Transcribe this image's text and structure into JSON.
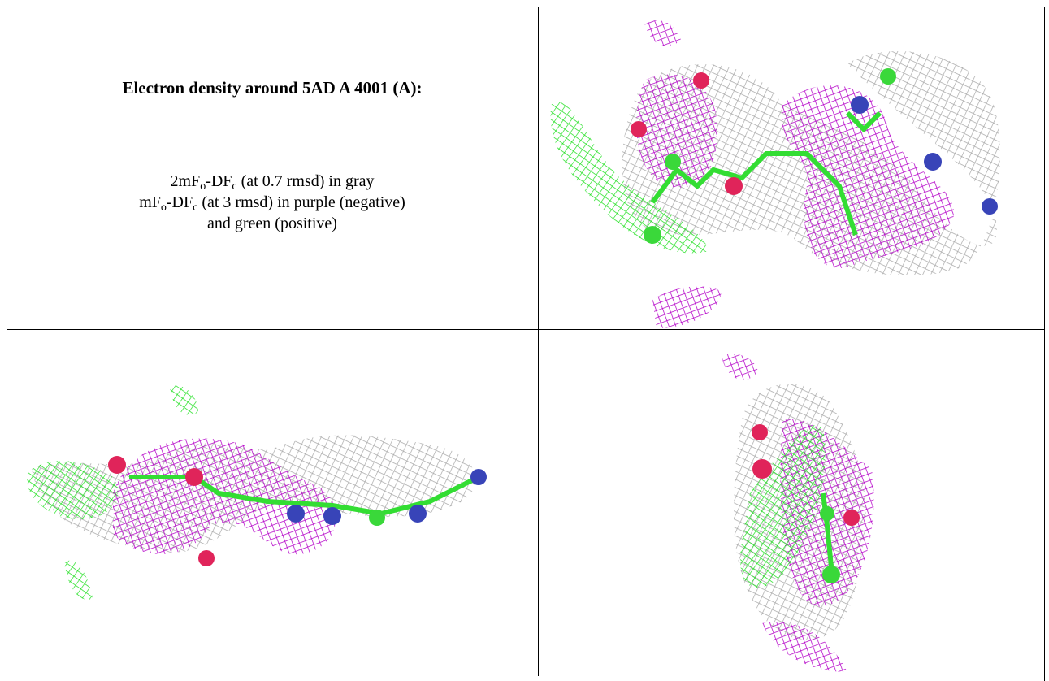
{
  "header": {
    "title": "Electron density around 5AD A 4001 (A):"
  },
  "legend": [
    [
      "2mF",
      "o",
      "-DF",
      "c",
      " (at 0.7 rmsd) in gray"
    ],
    [
      "mF",
      "o",
      "-DF",
      "c",
      " (at 3 rmsd) in purple (negative)"
    ],
    [
      "and green (positive)"
    ]
  ]
}
